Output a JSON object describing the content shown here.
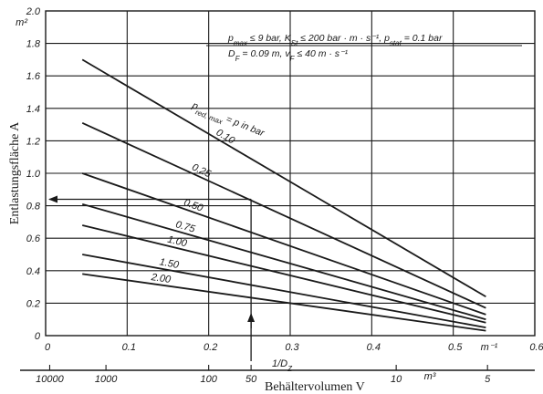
{
  "chart_data": {
    "type": "line",
    "y_axis": {
      "label": "Entlastungsfläche A",
      "unit": "m²",
      "range": [
        0,
        2.0
      ],
      "ticks": [
        "0",
        "0.2",
        "0.4",
        "0.6",
        "0.8",
        "1.0",
        "1.2",
        "1.4",
        "1.6",
        "1.8",
        "2.0"
      ]
    },
    "x_axis": {
      "label": "1/D_Z",
      "unit": "m⁻¹",
      "range": [
        0,
        0.6
      ],
      "ticks": [
        "0",
        "0.1",
        "0.2",
        "0.3",
        "0.4",
        "0.5",
        "0.6"
      ]
    },
    "secondary_x_axis": {
      "label": "Behältervolumen V",
      "unit": "m³",
      "ticks": [
        {
          "label": "10000",
          "x": 0.005
        },
        {
          "label": "1000",
          "x": 0.074
        },
        {
          "label": "100",
          "x": 0.2
        },
        {
          "label": "50",
          "x": 0.252
        },
        {
          "label": "10",
          "x": 0.43
        },
        {
          "label": "5",
          "x": 0.542
        }
      ]
    },
    "annotations": {
      "line1": "p_max ≤ 9 bar, K_St ≤ 200 bar · m · s⁻¹, p_stat = 0.1 bar",
      "line2": "D_F = 0.09 m, v_F ≤ 40 m · s⁻¹",
      "curve_family": "p_red, max = p in bar"
    },
    "series": [
      {
        "name": "0.10",
        "x": [
          0.045,
          0.54
        ],
        "y": [
          1.7,
          0.24
        ]
      },
      {
        "name": "0.25",
        "x": [
          0.045,
          0.54
        ],
        "y": [
          1.31,
          0.17
        ]
      },
      {
        "name": "0.50",
        "x": [
          0.045,
          0.54
        ],
        "y": [
          1.0,
          0.13
        ]
      },
      {
        "name": "0.75",
        "x": [
          0.045,
          0.54
        ],
        "y": [
          0.81,
          0.1
        ]
      },
      {
        "name": "1.00",
        "x": [
          0.045,
          0.54
        ],
        "y": [
          0.68,
          0.08
        ]
      },
      {
        "name": "1.50",
        "x": [
          0.045,
          0.54
        ],
        "y": [
          0.5,
          0.05
        ]
      },
      {
        "name": "2.00",
        "x": [
          0.045,
          0.54
        ],
        "y": [
          0.38,
          0.03
        ]
      }
    ],
    "reading_example": {
      "x": 0.252,
      "y": 0.84
    },
    "grid": true
  }
}
